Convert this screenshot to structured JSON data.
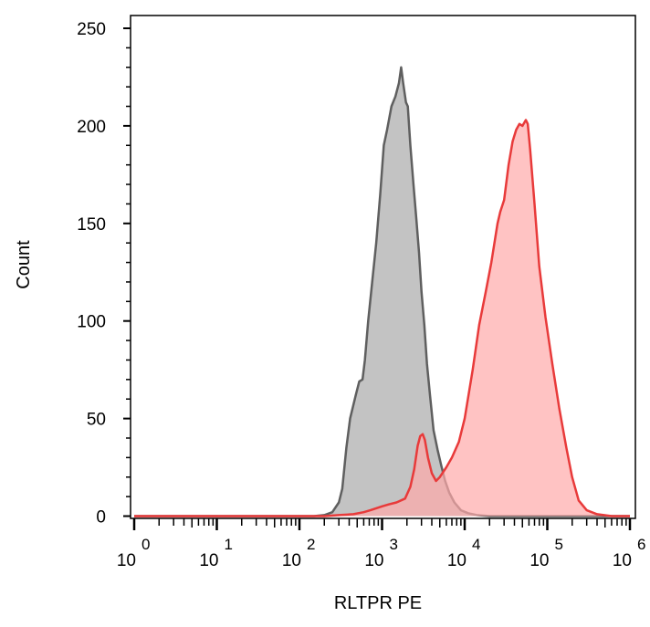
{
  "chart_data": {
    "type": "area",
    "title": "",
    "xlabel": "RLTPR PE",
    "ylabel": "Count",
    "x_scale": "log",
    "xlim": [
      1,
      1000000
    ],
    "ylim": [
      0,
      255
    ],
    "y_ticks": [
      {
        "value": 0,
        "label": "0"
      },
      {
        "value": 50,
        "label": "50"
      },
      {
        "value": 100,
        "label": "100"
      },
      {
        "value": 150,
        "label": "150"
      },
      {
        "value": 200,
        "label": "200"
      },
      {
        "value": 250,
        "label": "250"
      }
    ],
    "x_ticks": [
      {
        "value": 1,
        "base": "10",
        "exp": "0"
      },
      {
        "value": 10,
        "base": "10",
        "exp": "1"
      },
      {
        "value": 100,
        "base": "10",
        "exp": "2"
      },
      {
        "value": 1000,
        "base": "10",
        "exp": "3"
      },
      {
        "value": 10000,
        "base": "10",
        "exp": "4"
      },
      {
        "value": 100000,
        "base": "10",
        "exp": "5"
      },
      {
        "value": 1000000,
        "base": "10",
        "exp": "6"
      }
    ],
    "grid": false,
    "legend": "none",
    "series": [
      {
        "color_fill": "#c3c3c3",
        "color_line": "#5f5f5f",
        "points": [
          [
            1,
            0
          ],
          [
            100,
            0
          ],
          [
            150,
            0
          ],
          [
            200,
            0.5
          ],
          [
            250,
            2
          ],
          [
            300,
            7
          ],
          [
            330,
            14
          ],
          [
            370,
            35
          ],
          [
            410,
            50
          ],
          [
            480,
            62
          ],
          [
            530,
            69
          ],
          [
            580,
            70
          ],
          [
            620,
            80
          ],
          [
            680,
            100
          ],
          [
            760,
            120
          ],
          [
            850,
            140
          ],
          [
            950,
            165
          ],
          [
            1050,
            190
          ],
          [
            1150,
            198
          ],
          [
            1300,
            210
          ],
          [
            1450,
            215
          ],
          [
            1600,
            222
          ],
          [
            1700,
            230
          ],
          [
            1800,
            222
          ],
          [
            1950,
            212
          ],
          [
            2050,
            210
          ],
          [
            2200,
            190
          ],
          [
            2400,
            170
          ],
          [
            2600,
            152
          ],
          [
            2800,
            135
          ],
          [
            3000,
            115
          ],
          [
            3250,
            98
          ],
          [
            3500,
            78
          ],
          [
            3800,
            62
          ],
          [
            4200,
            44
          ],
          [
            4700,
            34
          ],
          [
            5200,
            26
          ],
          [
            5800,
            18
          ],
          [
            6500,
            12
          ],
          [
            7500,
            7
          ],
          [
            9000,
            3
          ],
          [
            11000,
            1.5
          ],
          [
            14000,
            0.5
          ],
          [
            20000,
            0
          ],
          [
            1000000,
            0
          ]
        ]
      },
      {
        "color_fill": "#ffaaaa",
        "color_line": "#e83a3a",
        "points": [
          [
            1,
            0
          ],
          [
            200,
            0
          ],
          [
            300,
            0.5
          ],
          [
            450,
            1
          ],
          [
            600,
            2
          ],
          [
            720,
            3
          ],
          [
            850,
            4
          ],
          [
            1000,
            5
          ],
          [
            1200,
            6
          ],
          [
            1500,
            7
          ],
          [
            1900,
            9
          ],
          [
            2200,
            15
          ],
          [
            2450,
            24
          ],
          [
            2700,
            36
          ],
          [
            2900,
            41
          ],
          [
            3100,
            42
          ],
          [
            3300,
            39
          ],
          [
            3600,
            30
          ],
          [
            4000,
            22
          ],
          [
            4500,
            18
          ],
          [
            5000,
            20
          ],
          [
            6000,
            25
          ],
          [
            7000,
            30
          ],
          [
            8500,
            38
          ],
          [
            10000,
            50
          ],
          [
            12500,
            75
          ],
          [
            15000,
            98
          ],
          [
            18000,
            115
          ],
          [
            21000,
            130
          ],
          [
            25000,
            150
          ],
          [
            27000,
            156
          ],
          [
            30000,
            162
          ],
          [
            34000,
            180
          ],
          [
            38000,
            192
          ],
          [
            42000,
            198
          ],
          [
            46000,
            201
          ],
          [
            50000,
            200
          ],
          [
            55000,
            203
          ],
          [
            58000,
            201
          ],
          [
            62000,
            188
          ],
          [
            70000,
            160
          ],
          [
            80000,
            128
          ],
          [
            95000,
            102
          ],
          [
            115000,
            78
          ],
          [
            140000,
            55
          ],
          [
            170000,
            35
          ],
          [
            200000,
            20
          ],
          [
            240000,
            8
          ],
          [
            300000,
            3
          ],
          [
            400000,
            1
          ],
          [
            600000,
            0
          ],
          [
            1000000,
            0
          ]
        ]
      }
    ]
  }
}
